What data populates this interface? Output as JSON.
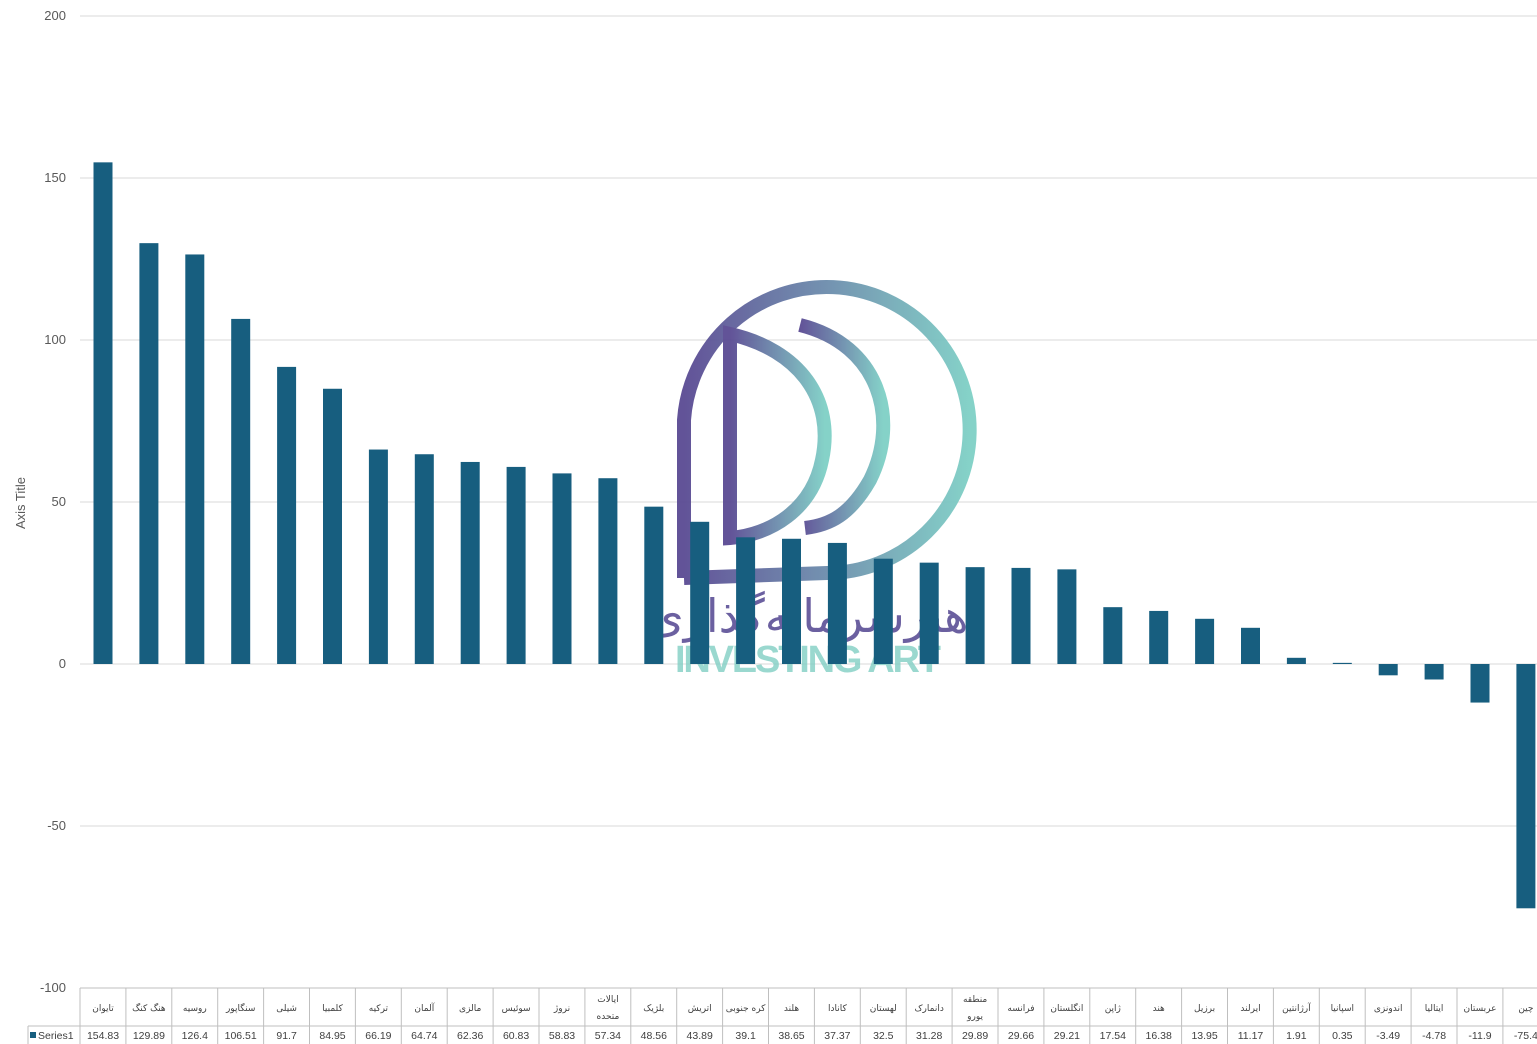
{
  "chart_data": {
    "type": "bar",
    "ylabel": "Axis Title",
    "ylim": [
      -100,
      200
    ],
    "yticks": [
      200,
      150,
      100,
      50,
      0,
      -50,
      -100
    ],
    "grid": true,
    "legend_in_table": true,
    "bar_color": "#175e7f",
    "categories": [
      "تایوان",
      "هنگ کنگ",
      "روسیه",
      "سنگاپور",
      "شیلی",
      "کلمبیا",
      "ترکیه",
      "آلمان",
      "مالزی",
      "سوئیس",
      "نروژ",
      "ایالات متحده",
      "بلژیک",
      "اتریش",
      "کره جنوبی",
      "هلند",
      "کانادا",
      "لهستان",
      "دانمارک",
      "منطقه یورو",
      "فرانسه",
      "انگلستان",
      "ژاپن",
      "هند",
      "برزیل",
      "ایرلند",
      "آرژانتین",
      "اسپانیا",
      "اندونزی",
      "ایتالیا",
      "عربستان",
      "چین"
    ],
    "series": [
      {
        "name": "Series1",
        "values": [
          154.83,
          129.89,
          126.4,
          106.51,
          91.7,
          84.95,
          66.19,
          64.74,
          62.36,
          60.83,
          58.83,
          57.34,
          48.56,
          43.89,
          39.1,
          38.65,
          37.37,
          32.5,
          31.28,
          29.89,
          29.66,
          29.21,
          17.54,
          16.38,
          13.95,
          11.17,
          1.91,
          0.35,
          -3.49,
          -4.78,
          -11.9,
          -75.4
        ],
        "labels": [
          "154.83",
          "129.89",
          "126.4",
          "106.51",
          "91.7",
          "84.95",
          "66.19",
          "64.74",
          "62.36",
          "60.83",
          "58.83",
          "57.34",
          "48.56",
          "43.89",
          "39.1",
          "38.65",
          "37.37",
          "32.5",
          "31.28",
          "29.89",
          "29.66",
          "29.21",
          "17.54",
          "16.38",
          "13.95",
          "11.17",
          "1.91",
          "0.35",
          "-3.49",
          "-4.78",
          "-11.9",
          "-75.4"
        ]
      }
    ]
  },
  "watermark": {
    "text_fa": "هنرسرمایه‌گذاری",
    "text_en": "INVESTING ART",
    "colors": {
      "purple": "#5a4a93",
      "teal": "#7fd0c6"
    }
  }
}
